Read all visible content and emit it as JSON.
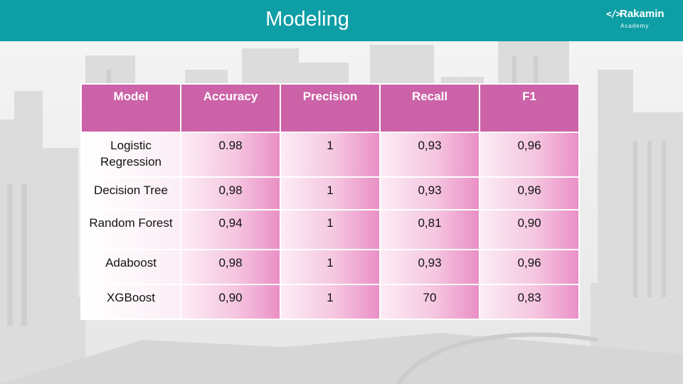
{
  "header": {
    "title": "Modeling",
    "logo": {
      "icon_text": "</>",
      "name": "Rakamin",
      "subtitle": "Academy"
    }
  },
  "table": {
    "columns": [
      "Model",
      "Accuracy",
      "Precision",
      "Recall",
      "F1"
    ],
    "rows": [
      [
        "Logistic Regression",
        "0.98",
        "1",
        "0,93",
        "0,96"
      ],
      [
        "Decision Tree",
        "0,98",
        "1",
        "0,93",
        "0,96"
      ],
      [
        "Random Forest",
        "0,94",
        "1",
        "0,81",
        "0,90"
      ],
      [
        "Adaboost",
        "0,98",
        "1",
        "0,93",
        "0,96"
      ],
      [
        "XGBoost",
        "0,90",
        "1",
        "70",
        "0,83"
      ]
    ]
  },
  "colors": {
    "header_bg": "#0e9ea5",
    "table_header_bg": "#cc62a8",
    "cell_gradient_end": "#ea8fc6"
  }
}
